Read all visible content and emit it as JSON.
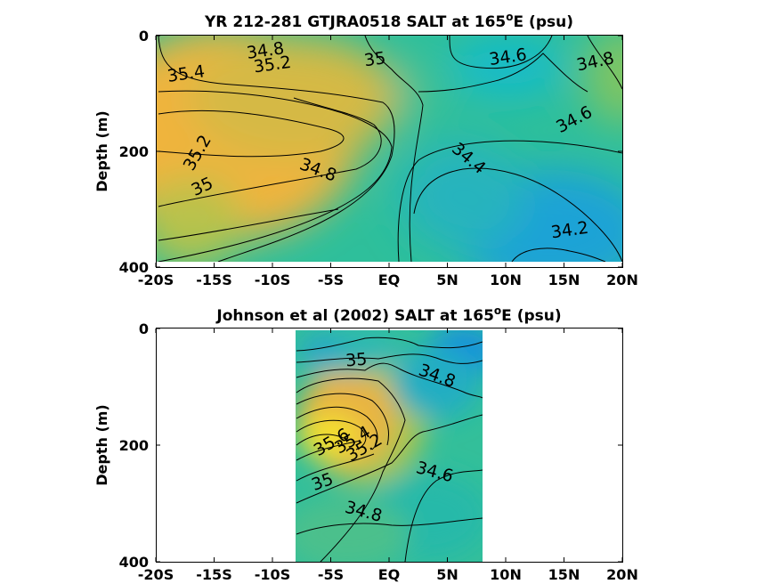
{
  "chart_data": [
    {
      "type": "heatmap",
      "variable": "SALT",
      "title": {
        "prefix": "YR 212-281 GTJRA0518 SALT at 165",
        "superscript": "o",
        "suffix": "E (psu)"
      },
      "ylabel": "Depth (m)",
      "xlabel": "",
      "x_ticks": [
        "-20S",
        "-15S",
        "-10S",
        "-5S",
        "EQ",
        "5N",
        "10N",
        "15N",
        "20N"
      ],
      "x_tick_values": [
        -20,
        -15,
        -10,
        -5,
        0,
        5,
        10,
        15,
        20
      ],
      "y_ticks": [
        "0",
        "200",
        "400"
      ],
      "y_tick_values": [
        0,
        200,
        400
      ],
      "xlim": [
        -20,
        20
      ],
      "ylim": [
        400,
        0
      ],
      "y_reversed": true,
      "data_extent_x": [
        -20,
        20
      ],
      "data_extent_y": [
        0,
        385
      ],
      "colormap": "parula",
      "contour_labels": [
        {
          "text": "34.8",
          "lat": -10.6,
          "depth": 27
        },
        {
          "text": "35.2",
          "lat": -10.0,
          "depth": 51
        },
        {
          "text": "35",
          "lat": -1.2,
          "depth": 42
        },
        {
          "text": "35.4",
          "lat": -17.4,
          "depth": 67
        },
        {
          "text": "34.6",
          "lat": 10.2,
          "depth": 38
        },
        {
          "text": "34.8",
          "lat": 17.7,
          "depth": 46
        },
        {
          "text": "34.6",
          "lat": 15.9,
          "depth": 146
        },
        {
          "text": "35.2",
          "lat": -16.4,
          "depth": 203
        },
        {
          "text": "34.8",
          "lat": -6.1,
          "depth": 233
        },
        {
          "text": "34.4",
          "lat": 6.8,
          "depth": 213
        },
        {
          "text": "35",
          "lat": -16.0,
          "depth": 262
        },
        {
          "text": "34.2",
          "lat": 15.5,
          "depth": 337
        }
      ]
    },
    {
      "type": "heatmap",
      "variable": "SALT",
      "title": {
        "prefix": "Johnson et al (2002) SALT at 165",
        "superscript": "o",
        "suffix": "E (psu)"
      },
      "ylabel": "Depth (m)",
      "xlabel": "",
      "x_ticks": [
        "-20S",
        "-15S",
        "-10S",
        "-5S",
        "EQ",
        "5N",
        "10N",
        "15N",
        "20N"
      ],
      "x_tick_values": [
        -20,
        -15,
        -10,
        -5,
        0,
        5,
        10,
        15,
        20
      ],
      "y_ticks": [
        "0",
        "200",
        "400"
      ],
      "y_tick_values": [
        0,
        200,
        400
      ],
      "xlim": [
        -20,
        20
      ],
      "ylim": [
        400,
        0
      ],
      "y_reversed": true,
      "data_extent_x": [
        -8,
        8
      ],
      "data_extent_y": [
        5,
        400
      ],
      "colormap": "parula",
      "contour_labels": [
        {
          "text": "35",
          "lat": -2.8,
          "depth": 55
        },
        {
          "text": "34.8",
          "lat": 4.1,
          "depth": 82
        },
        {
          "text": "35.6",
          "lat": -4.9,
          "depth": 196
        },
        {
          "text": "35.4",
          "lat": -3.1,
          "depth": 192
        },
        {
          "text": "35.2",
          "lat": -2.1,
          "depth": 205
        },
        {
          "text": "34.6",
          "lat": 3.9,
          "depth": 247
        },
        {
          "text": "35",
          "lat": -5.7,
          "depth": 264
        },
        {
          "text": "34.8",
          "lat": -2.2,
          "depth": 315
        }
      ]
    }
  ]
}
